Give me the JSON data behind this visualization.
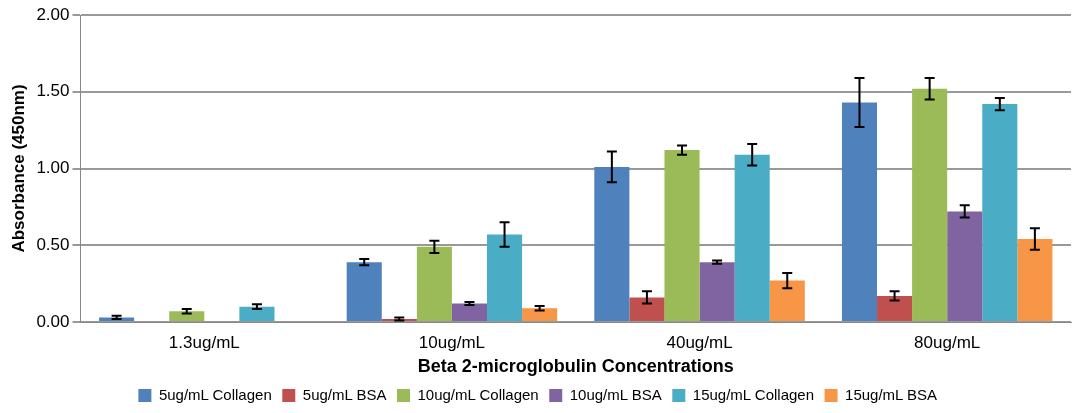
{
  "chart_data": {
    "type": "bar",
    "xlabel": "Beta 2-microglobulin Concentrations",
    "ylabel": "Absorbance (450nm)",
    "categories": [
      "1.3ug/mL",
      "10ug/mL",
      "40ug/mL",
      "80ug/mL"
    ],
    "series": [
      {
        "name": "5ug/mL Collagen",
        "color": "#4f81bd",
        "values": [
          0.03,
          0.39,
          1.01,
          1.43
        ],
        "errors": [
          0.01,
          0.02,
          0.1,
          0.16
        ]
      },
      {
        "name": "5ug/mL BSA",
        "color": "#c0504d",
        "values": [
          0.0,
          0.02,
          0.16,
          0.17
        ],
        "errors": [
          null,
          0.01,
          0.04,
          0.03
        ]
      },
      {
        "name": "10ug/mL Collagen",
        "color": "#9bbb59",
        "values": [
          0.07,
          0.49,
          1.12,
          1.52
        ],
        "errors": [
          0.015,
          0.04,
          0.03,
          0.07
        ]
      },
      {
        "name": "10ug/mL BSA",
        "color": "#8064a2",
        "values": [
          0.0,
          0.12,
          0.39,
          0.72
        ],
        "errors": [
          null,
          0.01,
          0.01,
          0.04
        ]
      },
      {
        "name": "15ug/mL Collagen",
        "color": "#4bacc6",
        "values": [
          0.1,
          0.57,
          1.09,
          1.42
        ],
        "errors": [
          0.015,
          0.08,
          0.07,
          0.04
        ]
      },
      {
        "name": "15ug/mL BSA",
        "color": "#f79646",
        "values": [
          0.0,
          0.09,
          0.27,
          0.54
        ],
        "errors": [
          null,
          0.015,
          0.05,
          0.07
        ]
      }
    ],
    "ylim": [
      0,
      2
    ],
    "yticks": [
      {
        "value": 0,
        "label": "0.00"
      },
      {
        "value": 0.5,
        "label": "0.50"
      },
      {
        "value": 1,
        "label": "1.00"
      },
      {
        "value": 1.5,
        "label": "1.50"
      },
      {
        "value": 2,
        "label": "2.00"
      }
    ],
    "grid": "y",
    "legend": "bottom"
  }
}
